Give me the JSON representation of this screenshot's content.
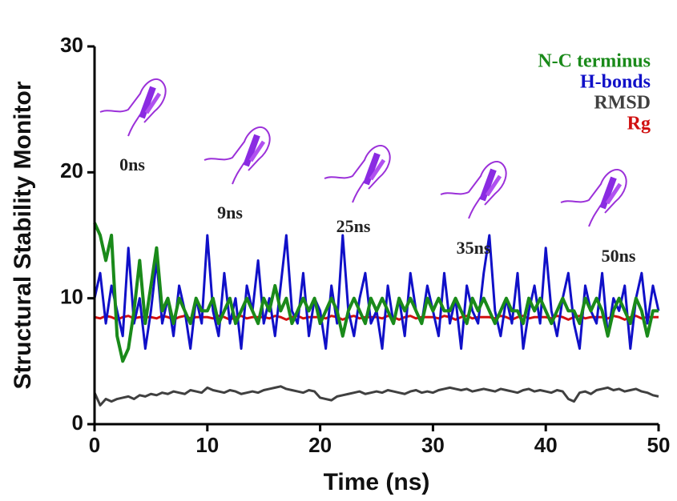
{
  "chart_data": {
    "type": "line",
    "xlabel": "Time (ns)",
    "ylabel": "Structural Stability Monitor",
    "xlim": [
      0,
      50
    ],
    "ylim": [
      0,
      30
    ],
    "xticks": [
      0,
      10,
      20,
      30,
      40,
      50
    ],
    "yticks": [
      0,
      10,
      20,
      30
    ],
    "legend": "upper right",
    "annotations": [
      "0ns",
      "9ns",
      "25ns",
      "35ns",
      "50ns"
    ],
    "x": [
      0,
      0.5,
      1,
      1.5,
      2,
      2.5,
      3,
      3.5,
      4,
      4.5,
      5,
      5.5,
      6,
      6.5,
      7,
      7.5,
      8,
      8.5,
      9,
      9.5,
      10,
      10.5,
      11,
      11.5,
      12,
      12.5,
      13,
      13.5,
      14,
      14.5,
      15,
      15.5,
      16,
      16.5,
      17,
      17.5,
      18,
      18.5,
      19,
      19.5,
      20,
      20.5,
      21,
      21.5,
      22,
      22.5,
      23,
      23.5,
      24,
      24.5,
      25,
      25.5,
      26,
      26.5,
      27,
      27.5,
      28,
      28.5,
      29,
      29.5,
      30,
      30.5,
      31,
      31.5,
      32,
      32.5,
      33,
      33.5,
      34,
      34.5,
      35,
      35.5,
      36,
      36.5,
      37,
      37.5,
      38,
      38.5,
      39,
      39.5,
      40,
      40.5,
      41,
      41.5,
      42,
      42.5,
      43,
      43.5,
      44,
      44.5,
      45,
      45.5,
      46,
      46.5,
      47,
      47.5,
      48,
      48.5,
      49,
      49.5,
      50
    ],
    "series": [
      {
        "name": "N-C terminus",
        "color": "#1a8a1a",
        "values": [
          16,
          15,
          13,
          15,
          7,
          5,
          6,
          9,
          13,
          8,
          11,
          14,
          9,
          10,
          8,
          10,
          9,
          8,
          10,
          9,
          9,
          10,
          8,
          9,
          10,
          8,
          9,
          10,
          9,
          8,
          10,
          9,
          11,
          9,
          10,
          8,
          9,
          10,
          9,
          10,
          8,
          9,
          10,
          9,
          7,
          9,
          10,
          9,
          8,
          10,
          9,
          10,
          9,
          8,
          10,
          9,
          10,
          9,
          8,
          10,
          9,
          10,
          9,
          9,
          10,
          9,
          8,
          10,
          9,
          10,
          9,
          8,
          9,
          10,
          9,
          9,
          8,
          10,
          9,
          10,
          9,
          8,
          9,
          10,
          9,
          9,
          8,
          10,
          9,
          10,
          9,
          7,
          9,
          10,
          9,
          8,
          10,
          9,
          7,
          9,
          9
        ]
      },
      {
        "name": "H-bonds",
        "color": "#1010c8",
        "values": [
          10,
          12,
          8,
          11,
          9,
          7,
          14,
          8,
          10,
          6,
          9,
          13,
          8,
          10,
          7,
          11,
          9,
          6,
          10,
          8,
          15,
          9,
          7,
          12,
          8,
          10,
          6,
          11,
          9,
          13,
          8,
          10,
          7,
          11,
          15,
          9,
          8,
          12,
          7,
          10,
          9,
          6,
          11,
          8,
          15,
          9,
          7,
          10,
          12,
          8,
          9,
          6,
          11,
          8,
          10,
          7,
          12,
          9,
          8,
          11,
          9,
          7,
          12,
          8,
          10,
          6,
          11,
          9,
          8,
          12,
          15,
          9,
          7,
          10,
          8,
          12,
          6,
          9,
          11,
          8,
          14,
          9,
          7,
          10,
          12,
          8,
          6,
          11,
          9,
          8,
          12,
          7,
          10,
          9,
          11,
          6,
          10,
          12,
          8,
          11,
          9
        ]
      },
      {
        "name": "RMSD",
        "color": "#404040",
        "values": [
          2.5,
          1.5,
          2,
          1.8,
          2,
          2.1,
          2.2,
          2,
          2.3,
          2.2,
          2.4,
          2.3,
          2.5,
          2.4,
          2.6,
          2.5,
          2.4,
          2.7,
          2.6,
          2.5,
          2.9,
          2.7,
          2.6,
          2.5,
          2.7,
          2.6,
          2.4,
          2.5,
          2.6,
          2.5,
          2.7,
          2.8,
          2.9,
          3,
          2.8,
          2.7,
          2.6,
          2.5,
          2.7,
          2.6,
          2.1,
          2,
          1.9,
          2.2,
          2.3,
          2.4,
          2.5,
          2.6,
          2.4,
          2.5,
          2.6,
          2.5,
          2.7,
          2.6,
          2.5,
          2.4,
          2.6,
          2.7,
          2.5,
          2.6,
          2.5,
          2.7,
          2.8,
          2.9,
          2.8,
          2.7,
          2.8,
          2.6,
          2.7,
          2.8,
          2.7,
          2.6,
          2.8,
          2.7,
          2.6,
          2.5,
          2.7,
          2.8,
          2.6,
          2.7,
          2.6,
          2.5,
          2.7,
          2.6,
          2,
          1.8,
          2.5,
          2.6,
          2.4,
          2.7,
          2.8,
          2.9,
          2.7,
          2.8,
          2.6,
          2.7,
          2.8,
          2.6,
          2.5,
          2.3,
          2.2
        ]
      },
      {
        "name": "Rg",
        "color": "#d01010",
        "values": [
          8.5,
          8.4,
          8.6,
          8.5,
          8.3,
          8.5,
          8.6,
          8.4,
          8.5,
          8.5,
          8.5,
          8.4,
          8.6,
          8.5,
          8.3,
          8.5,
          8.6,
          8.4,
          8.5,
          8.5,
          8.5,
          8.4,
          8.6,
          8.5,
          8.3,
          8.5,
          8.6,
          8.4,
          8.5,
          8.5,
          8.5,
          8.4,
          8.6,
          8.5,
          8.3,
          8.5,
          8.6,
          8.4,
          8.5,
          8.5,
          8.5,
          8.4,
          8.6,
          8.5,
          8.3,
          8.5,
          8.6,
          8.4,
          8.5,
          8.5,
          8.5,
          8.4,
          8.6,
          8.5,
          8.3,
          8.5,
          8.6,
          8.4,
          8.5,
          8.5,
          8.5,
          8.4,
          8.6,
          8.5,
          8.3,
          8.5,
          8.6,
          8.4,
          8.5,
          8.5,
          8.5,
          8.4,
          8.6,
          8.5,
          8.3,
          8.5,
          8.6,
          8.4,
          8.5,
          8.5,
          8.5,
          8.4,
          8.6,
          8.5,
          8.3,
          8.5,
          8.6,
          8.4,
          8.5,
          8.5,
          8.5,
          8.4,
          8.6,
          8.5,
          8.3,
          8.5,
          8.6,
          8.4,
          8.5,
          8.5,
          8.5
        ]
      }
    ]
  }
}
